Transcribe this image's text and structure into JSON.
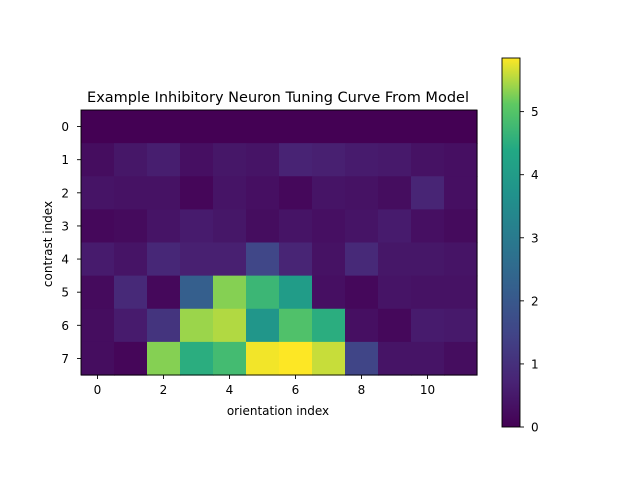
{
  "chart_data": {
    "type": "heatmap",
    "title": "Example Inhibitory Neuron Tuning Curve From Model",
    "xlabel": "orientation index",
    "ylabel": "contrast index",
    "x_categories": [
      0,
      1,
      2,
      3,
      4,
      5,
      6,
      7,
      8,
      9,
      10,
      11
    ],
    "y_categories": [
      0,
      1,
      2,
      3,
      4,
      5,
      6,
      7
    ],
    "x_ticks": [
      0,
      2,
      4,
      6,
      8,
      10
    ],
    "y_ticks": [
      0,
      1,
      2,
      3,
      4,
      5,
      6,
      7
    ],
    "colormap": "viridis",
    "vmin": 0,
    "vmax": 5.85,
    "colorbar_ticks": [
      0,
      1,
      2,
      3,
      4,
      5
    ],
    "grid": false,
    "values": [
      [
        0.0,
        0.0,
        0.0,
        0.0,
        0.0,
        0.0,
        0.0,
        0.0,
        0.0,
        0.0,
        0.0,
        0.0
      ],
      [
        0.25,
        0.45,
        0.6,
        0.3,
        0.45,
        0.4,
        0.7,
        0.65,
        0.55,
        0.5,
        0.35,
        0.3
      ],
      [
        0.4,
        0.35,
        0.35,
        0.1,
        0.4,
        0.3,
        0.15,
        0.4,
        0.35,
        0.25,
        0.75,
        0.3
      ],
      [
        0.15,
        0.2,
        0.4,
        0.55,
        0.45,
        0.25,
        0.4,
        0.3,
        0.4,
        0.55,
        0.3,
        0.2
      ],
      [
        0.55,
        0.4,
        0.8,
        0.65,
        0.65,
        1.55,
        0.75,
        0.35,
        0.85,
        0.45,
        0.45,
        0.4
      ],
      [
        0.2,
        0.85,
        0.15,
        2.2,
        5.3,
        4.7,
        4.0,
        0.3,
        0.15,
        0.4,
        0.35,
        0.35
      ],
      [
        0.25,
        0.55,
        1.1,
        5.4,
        5.5,
        3.8,
        4.95,
        4.5,
        0.3,
        0.15,
        0.55,
        0.5
      ],
      [
        0.25,
        0.1,
        5.3,
        4.5,
        4.8,
        5.8,
        5.85,
        5.6,
        1.5,
        0.4,
        0.4,
        0.25
      ]
    ]
  }
}
